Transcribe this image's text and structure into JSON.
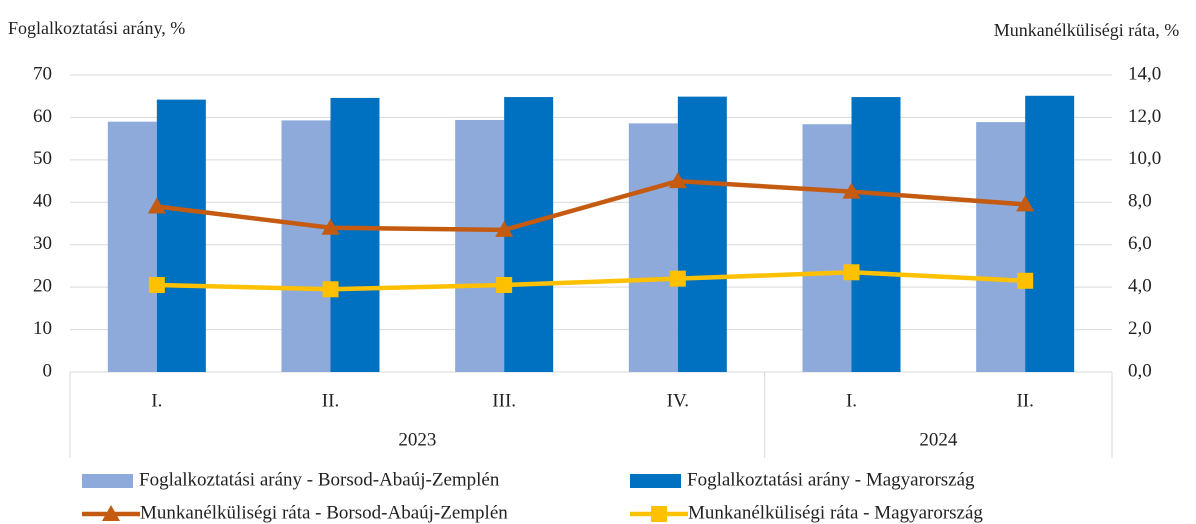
{
  "chart_data": {
    "type": "bar_line",
    "y_label": "Foglalkoztatási arány, %",
    "y2_label": "Munkanélküliségi ráta, %",
    "categories": [
      "I.",
      "II.",
      "III.",
      "IV.",
      "I.",
      "II."
    ],
    "groups": [
      {
        "label": "2023",
        "size": 4
      },
      {
        "label": "2024",
        "size": 2
      }
    ],
    "ylim": [
      0,
      70
    ],
    "yticks": [
      0,
      10,
      20,
      30,
      40,
      50,
      60,
      70
    ],
    "y2lim": [
      0,
      14
    ],
    "y2ticks": [
      {
        "value": 0,
        "label": "0,0"
      },
      {
        "value": 2,
        "label": "2,0"
      },
      {
        "value": 4,
        "label": "4,0"
      },
      {
        "value": 6,
        "label": "6,0"
      },
      {
        "value": 8,
        "label": "8,0"
      },
      {
        "value": 10,
        "label": "10,0"
      },
      {
        "value": 12,
        "label": "12,0"
      },
      {
        "value": 14,
        "label": "14,0"
      }
    ],
    "grid": true,
    "series": [
      {
        "name": "Foglalkoztatási arány - Borsod-Abaúj-Zemplén",
        "kind": "bar",
        "color": "#8eaadb",
        "values": [
          59.0,
          59.3,
          59.4,
          58.6,
          58.4,
          58.9
        ]
      },
      {
        "name": "Foglalkoztatási arány - Magyarország",
        "kind": "bar",
        "color": "#0070c0",
        "values": [
          64.2,
          64.6,
          64.8,
          64.9,
          64.8,
          65.1
        ]
      },
      {
        "name": "Munkanélküliségi ráta - Borsod-Abaúj-Zemplén",
        "kind": "line",
        "marker": "triangle",
        "axis": "y2",
        "color": "#c55a11",
        "values": [
          7.8,
          6.8,
          6.7,
          9.0,
          8.5,
          7.9
        ]
      },
      {
        "name": "Munkanélküliségi ráta - Magyarország",
        "kind": "line",
        "marker": "square",
        "axis": "y2",
        "color": "#ffc000",
        "values": [
          4.1,
          3.9,
          4.1,
          4.4,
          4.7,
          4.3
        ]
      }
    ]
  }
}
